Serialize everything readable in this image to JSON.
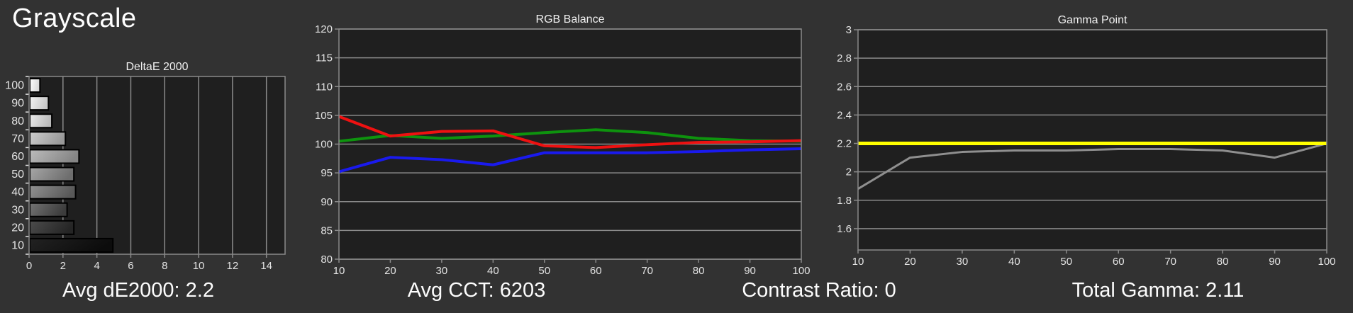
{
  "header": {
    "title": "Grayscale"
  },
  "stats": [
    {
      "id": "avg-de2000",
      "text": "Avg dE2000: 2.2"
    },
    {
      "id": "avg-cct",
      "text": "Avg CCT: 6203"
    },
    {
      "id": "contrast-ratio",
      "text": "Contrast Ratio: 0"
    },
    {
      "id": "total-gamma",
      "text": "Total Gamma: 2.11"
    }
  ],
  "colors": {
    "page_bg": "#323232",
    "plot_bg": "#1f1f1f",
    "grid": "#8a8a8a",
    "tick_text": "#e4e4e4",
    "title_text": "#f0f0f0",
    "bar_border": "#000000",
    "red": "#ee1111",
    "green": "#0e930e",
    "blue": "#1a1aee",
    "yellow": "#ffff00",
    "gamma_gray": "#8f8f8f"
  },
  "chart_data": [
    {
      "type": "bar",
      "orientation": "horizontal",
      "title": "DeltaE 2000",
      "categories": [
        "100",
        "90",
        "80",
        "70",
        "60",
        "50",
        "40",
        "30",
        "20",
        "10"
      ],
      "values": [
        0.6,
        1.1,
        1.3,
        2.1,
        2.9,
        2.6,
        2.7,
        2.2,
        2.6,
        4.9
      ],
      "xlim": [
        0,
        15.1
      ],
      "x_ticks": [
        0,
        2,
        4,
        6,
        8,
        10,
        12,
        14
      ],
      "grid": "vertical",
      "bar_gradients": [
        [
          "#ffffff",
          "#d8d8d8"
        ],
        [
          "#f4f4f4",
          "#c6c6c6"
        ],
        [
          "#ebebeb",
          "#b9b9b9"
        ],
        [
          "#cdcdcd",
          "#989898"
        ],
        [
          "#bcbcbc",
          "#858585"
        ],
        [
          "#a7a7a7",
          "#6e6e6e"
        ],
        [
          "#929292",
          "#585858"
        ],
        [
          "#747474",
          "#3c3c3c"
        ],
        [
          "#4c4c4c",
          "#252525"
        ],
        [
          "#222222",
          "#0c0c0c"
        ]
      ]
    },
    {
      "type": "line",
      "title": "RGB Balance",
      "x": [
        10,
        20,
        30,
        40,
        50,
        60,
        70,
        80,
        90,
        100
      ],
      "x_ticks": [
        10,
        20,
        30,
        40,
        50,
        60,
        70,
        80,
        90,
        100
      ],
      "ylim": [
        80,
        120
      ],
      "y_ticks": [
        120,
        115,
        110,
        105,
        100,
        95,
        90,
        85,
        80
      ],
      "grid": "horizontal",
      "series": [
        {
          "name": "green",
          "color_key": "green",
          "width": 4,
          "values": [
            100.5,
            101.5,
            101.0,
            101.4,
            102.0,
            102.5,
            102.0,
            101.0,
            100.6,
            100.5
          ]
        },
        {
          "name": "blue",
          "color_key": "blue",
          "width": 4,
          "values": [
            95.2,
            97.7,
            97.3,
            96.4,
            98.5,
            98.5,
            98.5,
            98.7,
            99.0,
            99.2
          ]
        },
        {
          "name": "red",
          "color_key": "red",
          "width": 4,
          "values": [
            104.8,
            101.4,
            102.2,
            102.3,
            99.7,
            99.4,
            99.9,
            100.3,
            100.4,
            100.6
          ]
        }
      ]
    },
    {
      "type": "line",
      "title": "Gamma Point",
      "x": [
        10,
        20,
        30,
        40,
        50,
        60,
        70,
        80,
        90,
        100
      ],
      "x_ticks": [
        10,
        20,
        30,
        40,
        50,
        60,
        70,
        80,
        90,
        100
      ],
      "ylim": [
        1.45,
        3
      ],
      "y_ticks": [
        3,
        2.8,
        2.6,
        2.4,
        2.2,
        2,
        1.8,
        1.6
      ],
      "grid": "horizontal",
      "series": [
        {
          "name": "gamma-measured",
          "color_key": "gamma_gray",
          "width": 3,
          "values": [
            1.88,
            2.1,
            2.14,
            2.15,
            2.15,
            2.16,
            2.16,
            2.15,
            2.1,
            2.2
          ]
        },
        {
          "name": "gamma-target",
          "color_key": "yellow",
          "width": 5,
          "values": [
            2.2,
            2.2,
            2.2,
            2.2,
            2.2,
            2.2,
            2.2,
            2.2,
            2.2,
            2.2
          ]
        }
      ]
    }
  ]
}
